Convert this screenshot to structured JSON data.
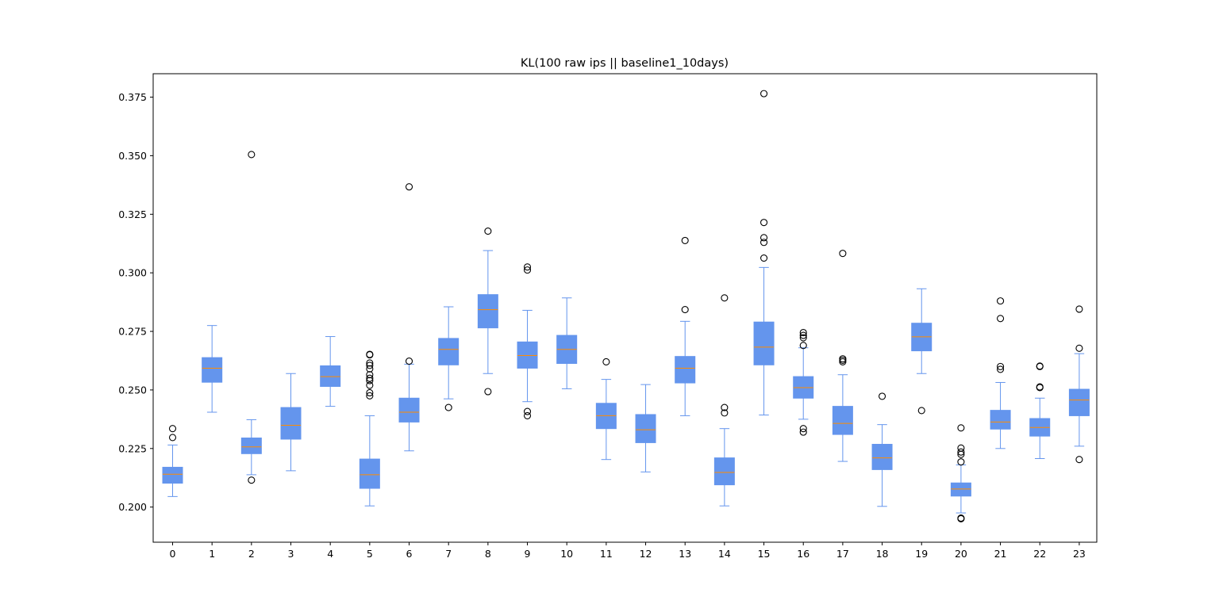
{
  "chart_data": {
    "type": "boxplot",
    "title": "KL(100 raw ips || baseline1_10days)",
    "xlabel": "",
    "ylabel": "",
    "ylim": [
      0.185,
      0.385
    ],
    "y_ticks": [
      0.2,
      0.225,
      0.25,
      0.275,
      0.3,
      0.325,
      0.35,
      0.375
    ],
    "y_tick_labels": [
      "0.200",
      "0.225",
      "0.250",
      "0.275",
      "0.300",
      "0.325",
      "0.350",
      "0.375"
    ],
    "grid": false,
    "legend": "none",
    "colors": {
      "box_fill": "#6495ed",
      "box_edge": "#6495ed",
      "whisker": "#6495ed",
      "median": "#ff8c00",
      "flier": "#000000"
    },
    "categories": [
      "0",
      "1",
      "2",
      "3",
      "4",
      "5",
      "6",
      "7",
      "8",
      "9",
      "10",
      "11",
      "12",
      "13",
      "14",
      "15",
      "16",
      "17",
      "18",
      "19",
      "20",
      "21",
      "22",
      "23"
    ],
    "boxes": [
      {
        "whislo": 0.2045,
        "q1": 0.2102,
        "med": 0.214,
        "q3": 0.217,
        "whishi": 0.2265,
        "fliers": [
          0.2297,
          0.2335
        ]
      },
      {
        "whislo": 0.2405,
        "q1": 0.2533,
        "med": 0.2593,
        "q3": 0.2638,
        "whishi": 0.2775,
        "fliers": []
      },
      {
        "whislo": 0.2138,
        "q1": 0.2228,
        "med": 0.2257,
        "q3": 0.2295,
        "whishi": 0.2373,
        "fliers": [
          0.2115,
          0.3505
        ]
      },
      {
        "whislo": 0.2155,
        "q1": 0.229,
        "med": 0.2349,
        "q3": 0.2425,
        "whishi": 0.257,
        "fliers": []
      },
      {
        "whislo": 0.243,
        "q1": 0.2515,
        "med": 0.2557,
        "q3": 0.2603,
        "whishi": 0.2728,
        "fliers": []
      },
      {
        "whislo": 0.2005,
        "q1": 0.208,
        "med": 0.2138,
        "q3": 0.2205,
        "whishi": 0.239,
        "fliers": [
          0.2475,
          0.2488,
          0.252,
          0.254,
          0.255,
          0.2565,
          0.259,
          0.2605,
          0.2615,
          0.265,
          0.2652
        ]
      },
      {
        "whislo": 0.224,
        "q1": 0.2363,
        "med": 0.2405,
        "q3": 0.2465,
        "whishi": 0.261,
        "fliers": [
          0.2623,
          0.3367
        ]
      },
      {
        "whislo": 0.2462,
        "q1": 0.2607,
        "med": 0.2673,
        "q3": 0.272,
        "whishi": 0.2855,
        "fliers": [
          0.2425
        ]
      },
      {
        "whislo": 0.257,
        "q1": 0.2765,
        "med": 0.2843,
        "q3": 0.2907,
        "whishi": 0.3095,
        "fliers": [
          0.2493,
          0.3178
        ]
      },
      {
        "whislo": 0.245,
        "q1": 0.2593,
        "med": 0.2647,
        "q3": 0.2705,
        "whishi": 0.284,
        "fliers": [
          0.239,
          0.2408,
          0.3012,
          0.3025
        ]
      },
      {
        "whislo": 0.2505,
        "q1": 0.2613,
        "med": 0.2673,
        "q3": 0.2733,
        "whishi": 0.2893,
        "fliers": []
      },
      {
        "whislo": 0.2203,
        "q1": 0.2335,
        "med": 0.239,
        "q3": 0.2443,
        "whishi": 0.2545,
        "fliers": [
          0.262
        ]
      },
      {
        "whislo": 0.215,
        "q1": 0.2275,
        "med": 0.233,
        "q3": 0.2395,
        "whishi": 0.2523,
        "fliers": []
      },
      {
        "whislo": 0.239,
        "q1": 0.253,
        "med": 0.2593,
        "q3": 0.2643,
        "whishi": 0.2793,
        "fliers": [
          0.2843,
          0.3138
        ]
      },
      {
        "whislo": 0.2005,
        "q1": 0.2095,
        "med": 0.2148,
        "q3": 0.221,
        "whishi": 0.2335,
        "fliers": [
          0.2402,
          0.2425,
          0.2893
        ]
      },
      {
        "whislo": 0.2393,
        "q1": 0.2607,
        "med": 0.2683,
        "q3": 0.279,
        "whishi": 0.3023,
        "fliers": [
          0.3063,
          0.313,
          0.315,
          0.3215,
          0.3765
        ]
      },
      {
        "whislo": 0.2375,
        "q1": 0.2465,
        "med": 0.251,
        "q3": 0.2557,
        "whishi": 0.268,
        "fliers": [
          0.232,
          0.2335,
          0.269,
          0.2723,
          0.2733,
          0.2745
        ]
      },
      {
        "whislo": 0.2195,
        "q1": 0.231,
        "med": 0.2357,
        "q3": 0.243,
        "whishi": 0.2565,
        "fliers": [
          0.262,
          0.2627,
          0.2633,
          0.3083
        ]
      },
      {
        "whislo": 0.2003,
        "q1": 0.216,
        "med": 0.221,
        "q3": 0.2268,
        "whishi": 0.2352,
        "fliers": [
          0.2473
        ]
      },
      {
        "whislo": 0.257,
        "q1": 0.2667,
        "med": 0.2727,
        "q3": 0.2785,
        "whishi": 0.2932,
        "fliers": [
          0.2412
        ]
      },
      {
        "whislo": 0.1975,
        "q1": 0.2047,
        "med": 0.2077,
        "q3": 0.2103,
        "whishi": 0.218,
        "fliers": [
          0.195,
          0.1953,
          0.2193,
          0.2225,
          0.2235,
          0.2252,
          0.2338
        ]
      },
      {
        "whislo": 0.225,
        "q1": 0.2333,
        "med": 0.2363,
        "q3": 0.2413,
        "whishi": 0.2532,
        "fliers": [
          0.2588,
          0.26,
          0.2805,
          0.288
        ]
      },
      {
        "whislo": 0.2207,
        "q1": 0.2303,
        "med": 0.234,
        "q3": 0.2378,
        "whishi": 0.2465,
        "fliers": [
          0.251,
          0.2513,
          0.26,
          0.2602
        ]
      },
      {
        "whislo": 0.226,
        "q1": 0.239,
        "med": 0.2457,
        "q3": 0.2503,
        "whishi": 0.2655,
        "fliers": [
          0.2203,
          0.2678,
          0.2845
        ]
      }
    ]
  }
}
